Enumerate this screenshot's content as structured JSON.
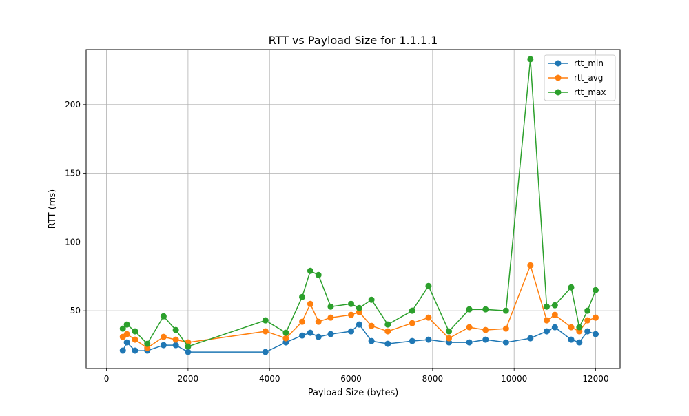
{
  "chart_data": {
    "type": "line",
    "title": "RTT vs Payload Size for 1.1.1.1",
    "xlabel": "Payload Size (bytes)",
    "ylabel": "RTT (ms)",
    "xlim": [
      -500,
      12600
    ],
    "ylim": [
      8,
      240
    ],
    "xticks": [
      0,
      2000,
      4000,
      6000,
      8000,
      10000,
      12000
    ],
    "yticks": [
      50,
      100,
      150,
      200
    ],
    "grid": true,
    "legend_position": "top-right",
    "series": [
      {
        "name": "rtt_min",
        "color": "#1f77b4",
        "x": [
          400,
          500,
          700,
          1000,
          1400,
          1700,
          2000,
          3900,
          4400,
          4800,
          5000,
          5200,
          5500,
          6000,
          6200,
          6500,
          6900,
          7500,
          7900,
          8400,
          8900,
          9300,
          9800,
          10400,
          10800,
          11000,
          11400,
          11600,
          11800,
          12000
        ],
        "values": [
          21,
          27,
          21,
          21,
          25,
          25,
          20,
          20,
          27,
          32,
          34,
          31,
          33,
          35,
          40,
          28,
          26,
          28,
          29,
          27,
          27,
          29,
          27,
          30,
          35,
          38,
          29,
          27,
          35,
          33
        ]
      },
      {
        "name": "rtt_avg",
        "color": "#ff7f0e",
        "x": [
          400,
          500,
          700,
          1000,
          1400,
          1700,
          2000,
          3900,
          4400,
          4800,
          5000,
          5200,
          5500,
          6000,
          6200,
          6500,
          6900,
          7500,
          7900,
          8400,
          8900,
          9300,
          9800,
          10400,
          10800,
          11000,
          11400,
          11600,
          11800,
          12000
        ],
        "values": [
          31,
          33,
          29,
          23,
          31,
          29,
          27,
          35,
          30,
          42,
          55,
          42,
          45,
          47,
          49,
          39,
          35,
          41,
          45,
          30,
          38,
          36,
          37,
          83,
          43,
          47,
          38,
          35,
          43,
          45
        ]
      },
      {
        "name": "rtt_max",
        "color": "#2ca02c",
        "x": [
          400,
          500,
          700,
          1000,
          1400,
          1700,
          2000,
          3900,
          4400,
          4800,
          5000,
          5200,
          5500,
          6000,
          6200,
          6500,
          6900,
          7500,
          7900,
          8400,
          8900,
          9300,
          9800,
          10400,
          10800,
          11000,
          11400,
          11600,
          11800,
          12000
        ],
        "values": [
          37,
          40,
          35,
          26,
          46,
          36,
          24,
          43,
          34,
          60,
          79,
          76,
          53,
          55,
          52,
          58,
          40,
          50,
          68,
          35,
          51,
          51,
          50,
          233,
          53,
          54,
          67,
          38,
          50,
          65
        ]
      }
    ]
  }
}
